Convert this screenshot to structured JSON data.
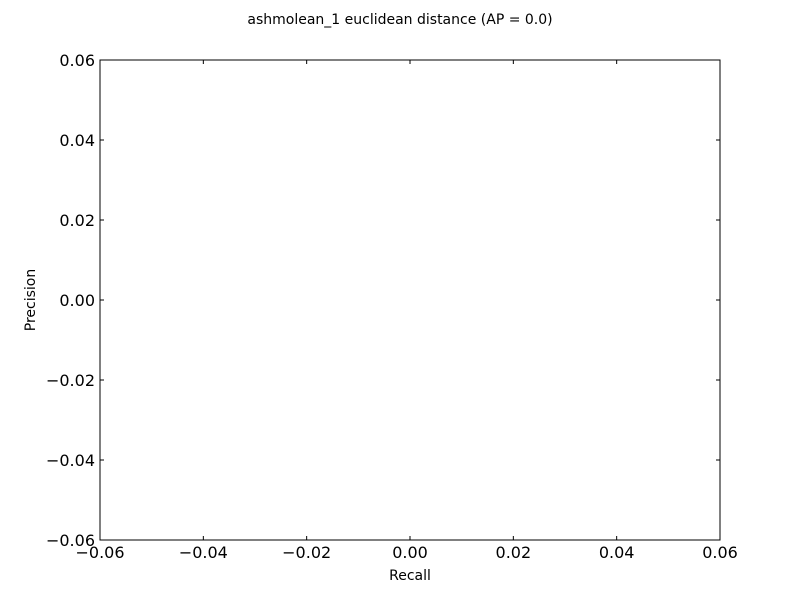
{
  "chart_data": {
    "type": "line",
    "title": "ashmolean_1 euclidean distance  (AP = 0.0)",
    "xlabel": "Recall",
    "ylabel": "Precision",
    "xlim": [
      -0.06,
      0.06
    ],
    "ylim": [
      -0.06,
      0.06
    ],
    "xticks": [
      -0.06,
      -0.04,
      -0.02,
      0.0,
      0.02,
      0.04,
      0.06
    ],
    "yticks": [
      -0.06,
      -0.04,
      -0.02,
      0.0,
      0.02,
      0.04,
      0.06
    ],
    "xtick_labels": [
      "−0.06",
      "−0.04",
      "−0.02",
      "0.00",
      "0.02",
      "0.04",
      "0.06"
    ],
    "ytick_labels": [
      "−0.06",
      "−0.04",
      "−0.02",
      "0.00",
      "0.02",
      "0.04",
      "0.06"
    ],
    "grid": false,
    "series": [
      {
        "x": [],
        "y": []
      }
    ]
  }
}
